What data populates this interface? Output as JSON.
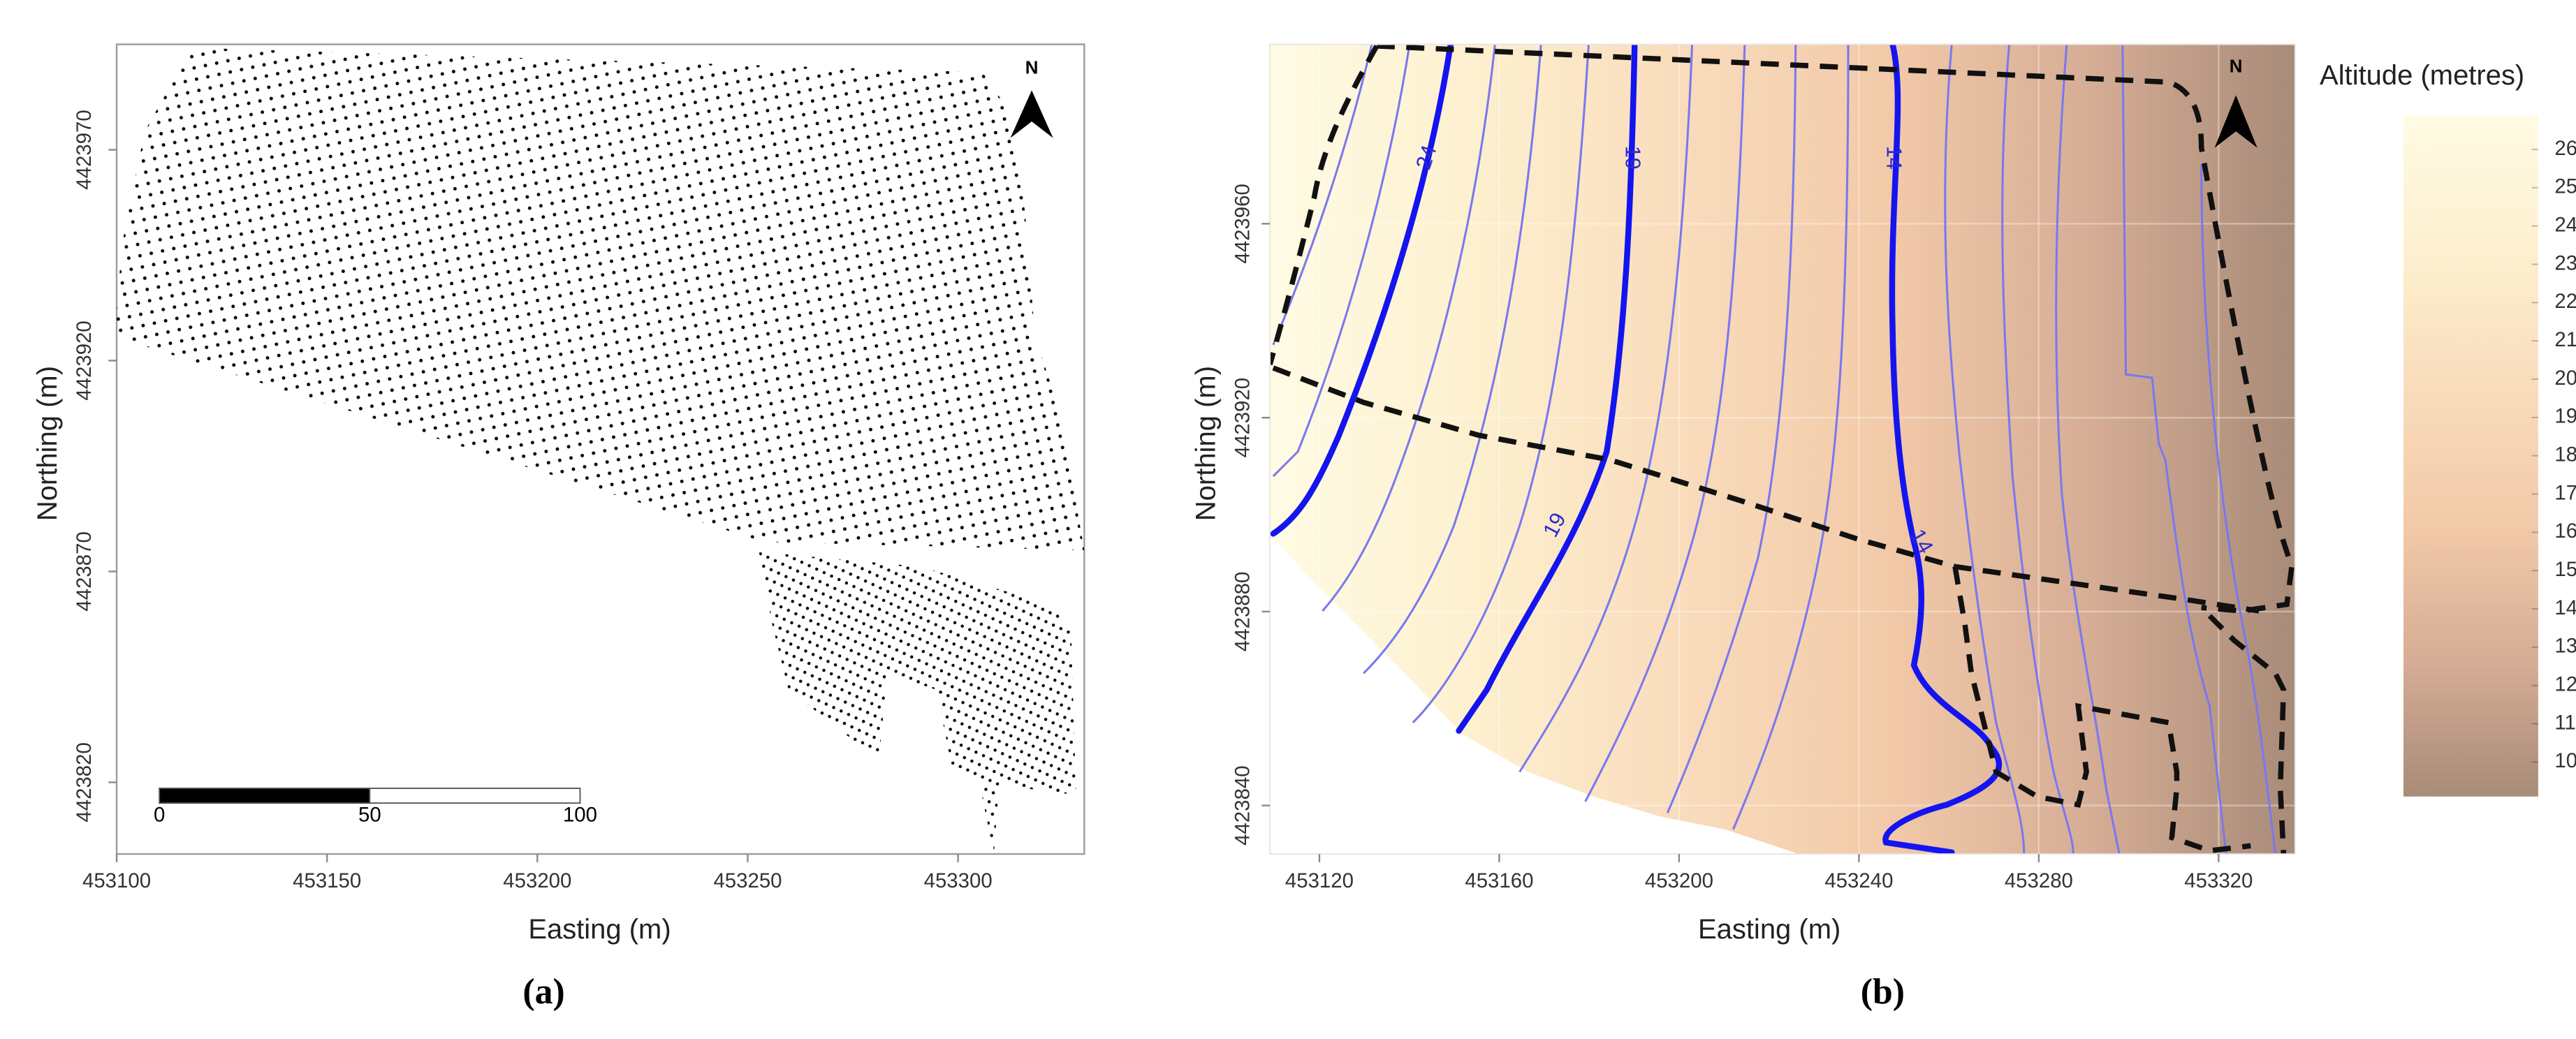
{
  "chart_data": [
    {
      "type": "scatter",
      "caption": "(a)",
      "x_label": "Easting (m)",
      "y_label": "Northing (m)",
      "xlim": [
        453100,
        453330
      ],
      "xticks": [
        453100,
        453150,
        453200,
        453250,
        453300
      ],
      "ylim": [
        4423803,
        4423995
      ],
      "yticks": [
        4423820,
        4423870,
        4423920,
        4423970
      ],
      "north": "N",
      "scale_bar": [
        0,
        50,
        100
      ],
      "color": "#000000"
    },
    {
      "type": "contour",
      "caption": "(b)",
      "x_label": "Easting (m)",
      "y_label": "Northing (m)",
      "xlim": [
        453109,
        453337
      ],
      "xticks": [
        453120,
        453160,
        453200,
        453240,
        453280,
        453320
      ],
      "ylim": [
        4423830,
        4423997
      ],
      "yticks": [
        4423840,
        4423880,
        4423920,
        4423960
      ],
      "north": "N",
      "grid": true,
      "contour_labels": [
        24,
        19,
        19,
        14,
        14
      ],
      "colorbar": {
        "label": "Altitude (metres)",
        "lim": [
          9.1,
          26.9
        ],
        "ticks": [
          10,
          11,
          12,
          13,
          14,
          15,
          16,
          17,
          18,
          19,
          20,
          21,
          22,
          23,
          24,
          25,
          26
        ],
        "colors": [
          "#fffbe4",
          "#fdf0cf",
          "#f9dcbc",
          "#f2caa9",
          "#d6ad95",
          "#a88b78"
        ]
      }
    }
  ]
}
